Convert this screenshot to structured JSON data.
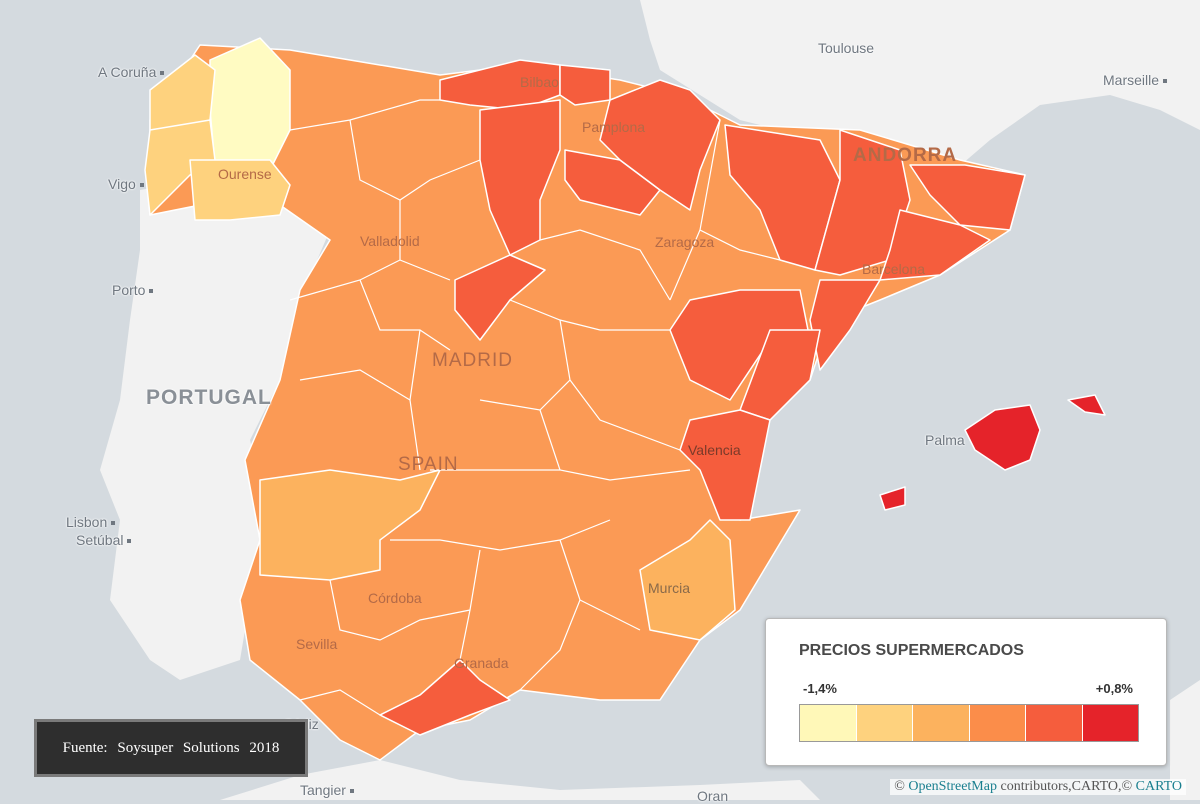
{
  "legend": {
    "title": "PRECIOS SUPERMERCADOS",
    "min_label": "-1,4%",
    "max_label": "+0,8%",
    "colors": [
      "#fff8b8",
      "#fed27e",
      "#fcb25e",
      "#fb8d4a",
      "#f55d3d",
      "#e5232a"
    ]
  },
  "source_note": "Fuente: Soysuper Solutions 2018",
  "attribution": {
    "prefix": "©",
    "osm": "OpenStreetMap",
    "middle": "contributors,CARTO,©",
    "carto": "CARTO"
  },
  "map_labels": {
    "toulouse": "Toulouse",
    "marseille": "Marseille",
    "a_coruna": "A Coruña",
    "vigo": "Vigo",
    "ourense": "Ourense",
    "bilbao": "Bilbao",
    "pamplona": "Pamplona",
    "andorra": "ANDORRA",
    "valladolid": "Valladolid",
    "zaragoza": "Zaragoza",
    "barcelona": "Barcelona",
    "porto": "Porto",
    "madrid": "MADRID",
    "portugal": "PORTUGAL",
    "spain": "SPAIN",
    "palma": "Palma",
    "valencia": "Valencia",
    "lisbon": "Lisbon",
    "setubal": "Setúbal",
    "cordoba": "Córdoba",
    "murcia": "Murcia",
    "sevilla": "Sevilla",
    "granada": "Granada",
    "cadiz": "Cádiz",
    "tangier": "Tangier",
    "oran": "Oran"
  },
  "colors": {
    "sea": "#d4dadf",
    "land": "#f2f2f2",
    "border": "#ffffff"
  }
}
